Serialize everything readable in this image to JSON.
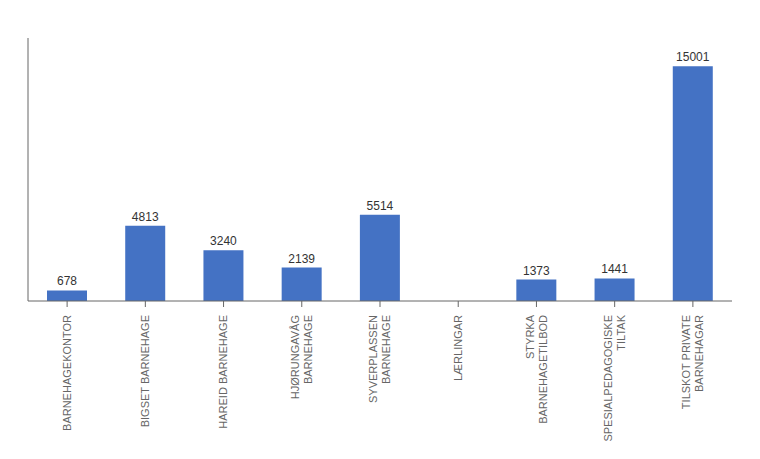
{
  "chart_data": {
    "type": "bar",
    "categories": [
      "BARNEHAGEKONTOR",
      "BIGSET BARNEHAGE",
      "HAREID BARNEHAGE",
      "HJØRUNGAVÅG\nBARNEHAGE",
      "SYVERPLASSEN\nBARNEHAGE",
      "LÆRLINGAR",
      "STYRKA\nBARNEHAGETILBOD",
      "SPESIALPEDAGOGISKE\nTILTAK",
      "TILSKOT PRIVATE\nBARNEHAGAR"
    ],
    "values": [
      678,
      4813,
      3240,
      2139,
      5514,
      0,
      1373,
      1441,
      15001
    ],
    "color": "#4472C4",
    "ylim": [
      0,
      16800
    ],
    "data_labels": true,
    "tick_labels": "x",
    "grid": false
  }
}
